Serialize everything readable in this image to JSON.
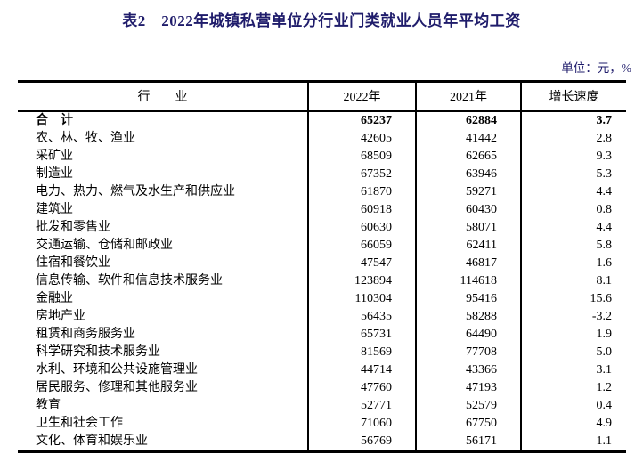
{
  "title": "表2　2022年城镇私营单位分行业门类就业人员年平均工资",
  "unit_note": "单位：元，%",
  "colors": {
    "title": "#1f1c6b",
    "unit_note": "#1f1c6b",
    "text": "#000000",
    "border": "#000000",
    "background": "#ffffff"
  },
  "table": {
    "headers": {
      "industry": "行　　业",
      "y2022": "2022年",
      "y2021": "2021年",
      "growth": "增长速度"
    },
    "rows": [
      {
        "industry": "合　计",
        "y2022": "65237",
        "y2021": "62884",
        "growth": "3.7",
        "bold": true
      },
      {
        "industry": "农、林、牧、渔业",
        "y2022": "42605",
        "y2021": "41442",
        "growth": "2.8",
        "bold": false
      },
      {
        "industry": "采矿业",
        "y2022": "68509",
        "y2021": "62665",
        "growth": "9.3",
        "bold": false
      },
      {
        "industry": "制造业",
        "y2022": "67352",
        "y2021": "63946",
        "growth": "5.3",
        "bold": false
      },
      {
        "industry": "电力、热力、燃气及水生产和供应业",
        "y2022": "61870",
        "y2021": "59271",
        "growth": "4.4",
        "bold": false
      },
      {
        "industry": "建筑业",
        "y2022": "60918",
        "y2021": "60430",
        "growth": "0.8",
        "bold": false
      },
      {
        "industry": "批发和零售业",
        "y2022": "60630",
        "y2021": "58071",
        "growth": "4.4",
        "bold": false
      },
      {
        "industry": "交通运输、仓储和邮政业",
        "y2022": "66059",
        "y2021": "62411",
        "growth": "5.8",
        "bold": false
      },
      {
        "industry": "住宿和餐饮业",
        "y2022": "47547",
        "y2021": "46817",
        "growth": "1.6",
        "bold": false
      },
      {
        "industry": "信息传输、软件和信息技术服务业",
        "y2022": "123894",
        "y2021": "114618",
        "growth": "8.1",
        "bold": false
      },
      {
        "industry": "金融业",
        "y2022": "110304",
        "y2021": "95416",
        "growth": "15.6",
        "bold": false
      },
      {
        "industry": "房地产业",
        "y2022": "56435",
        "y2021": "58288",
        "growth": "-3.2",
        "bold": false
      },
      {
        "industry": "租赁和商务服务业",
        "y2022": "65731",
        "y2021": "64490",
        "growth": "1.9",
        "bold": false
      },
      {
        "industry": "科学研究和技术服务业",
        "y2022": "81569",
        "y2021": "77708",
        "growth": "5.0",
        "bold": false
      },
      {
        "industry": "水利、环境和公共设施管理业",
        "y2022": "44714",
        "y2021": "43366",
        "growth": "3.1",
        "bold": false
      },
      {
        "industry": "居民服务、修理和其他服务业",
        "y2022": "47760",
        "y2021": "47193",
        "growth": "1.2",
        "bold": false
      },
      {
        "industry": "教育",
        "y2022": "52771",
        "y2021": "52579",
        "growth": "0.4",
        "bold": false
      },
      {
        "industry": "卫生和社会工作",
        "y2022": "71060",
        "y2021": "67750",
        "growth": "4.9",
        "bold": false
      },
      {
        "industry": "文化、体育和娱乐业",
        "y2022": "56769",
        "y2021": "56171",
        "growth": "1.1",
        "bold": false
      }
    ]
  }
}
